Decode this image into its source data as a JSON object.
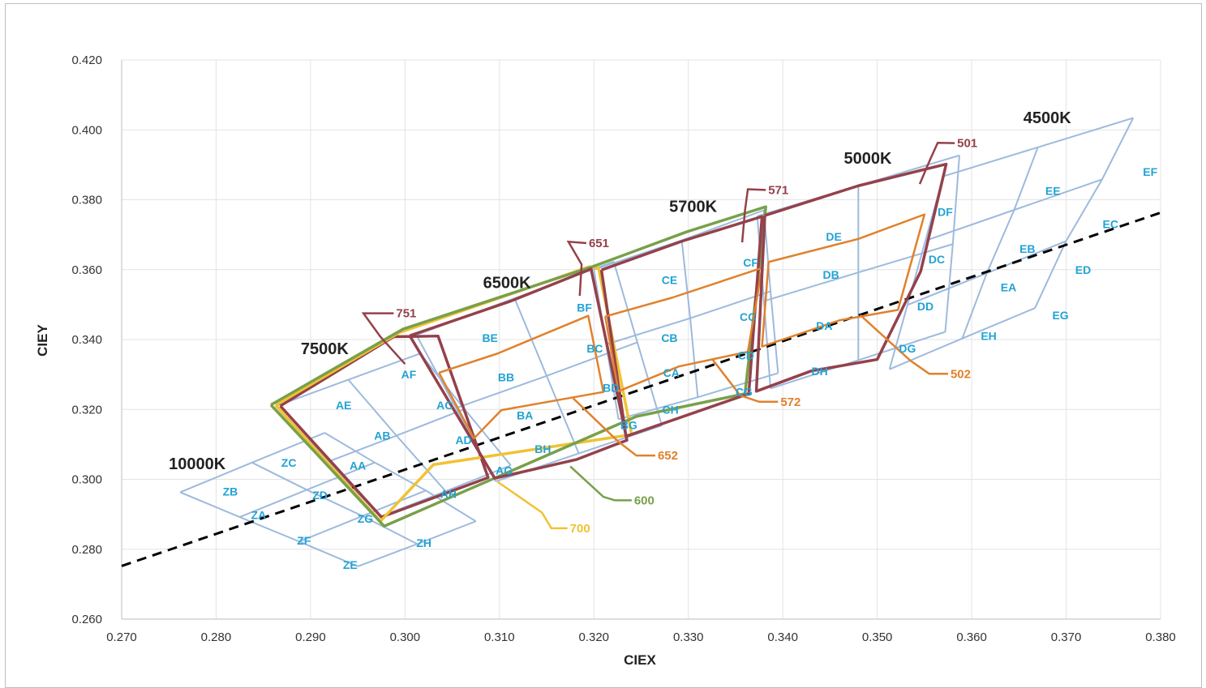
{
  "chart_data": {
    "type": "scatter",
    "subtype": "CIE 1931 chromaticity bin map",
    "xlabel": "CIEX",
    "ylabel": "CIEY",
    "xlim": [
      0.27,
      0.38
    ],
    "ylim": [
      0.26,
      0.42
    ],
    "x_ticks": [
      "0.270",
      "0.280",
      "0.290",
      "0.300",
      "0.310",
      "0.320",
      "0.330",
      "0.340",
      "0.350",
      "0.360",
      "0.370",
      "0.380"
    ],
    "y_ticks": [
      "0.260",
      "0.280",
      "0.300",
      "0.320",
      "0.340",
      "0.360",
      "0.380",
      "0.400",
      "0.420"
    ],
    "grid": true,
    "colors": {
      "bin_grid": "#9dbadd",
      "bin_label": "#22a3d4",
      "c751": "#94414b",
      "c700": "#f1c232",
      "c600": "#78a04a",
      "c651": "#94414b",
      "c652": "#e0812c",
      "c571": "#94414b",
      "c572": "#e0812c",
      "c501": "#94414b",
      "c502": "#e0812c",
      "blackbody": "#000000"
    },
    "blackbody_locus": [
      [
        0.27,
        0.2752
      ],
      [
        0.38,
        0.3763
      ]
    ],
    "cct_labels": [
      {
        "text": "10000K",
        "x": 0.278,
        "y": 0.3045
      },
      {
        "text": "7500K",
        "x": 0.2915,
        "y": 0.3375
      },
      {
        "text": "6500K",
        "x": 0.3108,
        "y": 0.3564
      },
      {
        "text": "5700K",
        "x": 0.3305,
        "y": 0.3782
      },
      {
        "text": "5000K",
        "x": 0.349,
        "y": 0.392
      },
      {
        "text": "4500K",
        "x": 0.368,
        "y": 0.4035
      }
    ],
    "bin_grids": [
      {
        "name": "10000K",
        "rows": [
          [
            [
              0.2762,
              0.2963
            ],
            [
              0.2838,
              0.3048
            ],
            [
              0.2915,
              0.3133
            ]
          ],
          [
            [
              0.2825,
              0.2892
            ],
            [
              0.2896,
              0.297
            ],
            [
              0.2968,
              0.3048
            ]
          ],
          [
            [
              0.2888,
              0.2822
            ],
            [
              0.2955,
              0.2895
            ],
            [
              0.3022,
              0.2968
            ]
          ],
          [
            [
              0.295,
              0.2751
            ],
            [
              0.3013,
              0.2815
            ],
            [
              0.3075,
              0.288
            ]
          ]
        ]
      },
      {
        "name": "7500K",
        "rows": [
          [
            [
              0.2864,
              0.321
            ],
            [
              0.294,
              0.3285
            ],
            [
              0.3016,
              0.336
            ]
          ],
          [
            [
              0.2919,
              0.3051
            ],
            [
              0.2991,
              0.3125
            ],
            [
              0.3063,
              0.3201
            ]
          ],
          [
            [
              0.2974,
              0.2893
            ],
            [
              0.3043,
              0.2966
            ],
            [
              0.3112,
              0.304
            ]
          ]
        ]
      },
      {
        "name": "6500K",
        "rows": [
          [
            [
              0.3012,
              0.3413
            ],
            [
              0.3116,
              0.3518
            ],
            [
              0.3221,
              0.3623
            ]
          ],
          [
            [
              0.3054,
              0.3204
            ],
            [
              0.315,
              0.3296
            ],
            [
              0.3246,
              0.3392
            ]
          ],
          [
            [
              0.3096,
              0.2994
            ],
            [
              0.3184,
              0.3074
            ],
            [
              0.3272,
              0.3154
            ]
          ]
        ]
      },
      {
        "name": "5700K",
        "rows": [
          [
            [
              0.32,
              0.36
            ],
            [
              0.3293,
              0.3684
            ],
            [
              0.338,
              0.377
            ]
          ],
          [
            [
              0.3213,
              0.3386
            ],
            [
              0.3302,
              0.3461
            ],
            [
              0.3387,
              0.3538
            ]
          ],
          [
            [
              0.3226,
              0.3172
            ],
            [
              0.331,
              0.3235
            ],
            [
              0.3395,
              0.3304
            ]
          ]
        ]
      },
      {
        "name": "5000K",
        "rows": [
          [
            [
              0.3373,
              0.3753
            ],
            [
              0.348,
              0.384
            ],
            [
              0.3587,
              0.3927
            ]
          ],
          [
            [
              0.338,
              0.351
            ],
            [
              0.348,
              0.3592
            ],
            [
              0.358,
              0.3673
            ]
          ],
          [
            [
              0.3387,
              0.326
            ],
            [
              0.348,
              0.3341
            ],
            [
              0.3572,
              0.3422
            ]
          ]
        ]
      },
      {
        "name": "4500K",
        "rows": [
          [
            [
              0.357,
              0.3867
            ],
            [
              0.367,
              0.395
            ],
            [
              0.3771,
              0.4034
            ]
          ],
          [
            [
              0.3551,
              0.3683
            ],
            [
              0.3645,
              0.3771
            ],
            [
              0.3738,
              0.3858
            ]
          ],
          [
            [
              0.3532,
              0.3499
            ],
            [
              0.3616,
              0.359
            ],
            [
              0.37,
              0.3682
            ]
          ],
          [
            [
              0.3513,
              0.3315
            ],
            [
              0.359,
              0.3403
            ],
            [
              0.3667,
              0.349
            ]
          ]
        ]
      }
    ],
    "bins": [
      {
        "label": "ZB",
        "x": 0.2815,
        "y": 0.2965
      },
      {
        "label": "ZC",
        "x": 0.2877,
        "y": 0.3048
      },
      {
        "label": "ZA",
        "x": 0.2845,
        "y": 0.2898
      },
      {
        "label": "ZD",
        "x": 0.291,
        "y": 0.2955
      },
      {
        "label": "ZF",
        "x": 0.2893,
        "y": 0.2825
      },
      {
        "label": "ZG",
        "x": 0.2958,
        "y": 0.2888
      },
      {
        "label": "ZE",
        "x": 0.2942,
        "y": 0.2755
      },
      {
        "label": "ZH",
        "x": 0.302,
        "y": 0.2818
      },
      {
        "label": "AE",
        "x": 0.2935,
        "y": 0.3212
      },
      {
        "label": "AF",
        "x": 0.3004,
        "y": 0.33
      },
      {
        "label": "AB",
        "x": 0.2976,
        "y": 0.3125
      },
      {
        "label": "AC",
        "x": 0.3042,
        "y": 0.3212
      },
      {
        "label": "AA",
        "x": 0.295,
        "y": 0.304
      },
      {
        "label": "AD",
        "x": 0.3062,
        "y": 0.3113
      },
      {
        "label": "AH",
        "x": 0.3046,
        "y": 0.2958
      },
      {
        "label": "AG",
        "x": 0.3105,
        "y": 0.3025
      },
      {
        "label": "BE",
        "x": 0.309,
        "y": 0.3405
      },
      {
        "label": "BF",
        "x": 0.319,
        "y": 0.3492
      },
      {
        "label": "BB",
        "x": 0.3107,
        "y": 0.3292
      },
      {
        "label": "BC",
        "x": 0.3201,
        "y": 0.3375
      },
      {
        "label": "BA",
        "x": 0.3127,
        "y": 0.3183
      },
      {
        "label": "BD",
        "x": 0.3218,
        "y": 0.3262
      },
      {
        "label": "BH",
        "x": 0.3146,
        "y": 0.3087
      },
      {
        "label": "BG",
        "x": 0.3237,
        "y": 0.3155
      },
      {
        "label": "CE",
        "x": 0.328,
        "y": 0.357
      },
      {
        "label": "CF",
        "x": 0.3366,
        "y": 0.362
      },
      {
        "label": "CB",
        "x": 0.328,
        "y": 0.3405
      },
      {
        "label": "CC",
        "x": 0.3363,
        "y": 0.3465
      },
      {
        "label": "CA",
        "x": 0.3282,
        "y": 0.3305
      },
      {
        "label": "CD",
        "x": 0.3361,
        "y": 0.3355
      },
      {
        "label": "CH",
        "x": 0.3281,
        "y": 0.32
      },
      {
        "label": "CG",
        "x": 0.3359,
        "y": 0.325
      },
      {
        "label": "DE",
        "x": 0.3454,
        "y": 0.3695
      },
      {
        "label": "DF",
        "x": 0.3572,
        "y": 0.3765
      },
      {
        "label": "DB",
        "x": 0.3451,
        "y": 0.3585
      },
      {
        "label": "DC",
        "x": 0.3563,
        "y": 0.363
      },
      {
        "label": "DA",
        "x": 0.3444,
        "y": 0.344
      },
      {
        "label": "DD",
        "x": 0.3551,
        "y": 0.3495
      },
      {
        "label": "DH",
        "x": 0.3439,
        "y": 0.331
      },
      {
        "label": "DG",
        "x": 0.3532,
        "y": 0.3375
      },
      {
        "label": "EE",
        "x": 0.3686,
        "y": 0.3825
      },
      {
        "label": "EF",
        "x": 0.3789,
        "y": 0.388
      },
      {
        "label": "EB",
        "x": 0.3659,
        "y": 0.366
      },
      {
        "label": "EC",
        "x": 0.3747,
        "y": 0.373
      },
      {
        "label": "EA",
        "x": 0.3639,
        "y": 0.355
      },
      {
        "label": "ED",
        "x": 0.3718,
        "y": 0.36
      },
      {
        "label": "EH",
        "x": 0.3618,
        "y": 0.341
      },
      {
        "label": "EG",
        "x": 0.3694,
        "y": 0.347
      }
    ],
    "series": [
      {
        "name": "751",
        "color": "#94414b",
        "width": 3.5,
        "points": [
          [
            0.2868,
            0.321
          ],
          [
            0.2988,
            0.3408
          ],
          [
            0.3035,
            0.341
          ],
          [
            0.3088,
            0.3005
          ],
          [
            0.2975,
            0.2892
          ],
          [
            0.2868,
            0.321
          ]
        ]
      },
      {
        "name": "700",
        "color": "#f1c232",
        "width": 3.5,
        "points": [
          [
            0.2863,
            0.3212
          ],
          [
            0.2994,
            0.342
          ],
          [
            0.3195,
            0.3608
          ],
          [
            0.3205,
            0.3604
          ],
          [
            0.324,
            0.3128
          ],
          [
            0.303,
            0.3042
          ],
          [
            0.2974,
            0.288
          ],
          [
            0.2863,
            0.3212
          ]
        ]
      },
      {
        "name": "600",
        "color": "#78a04a",
        "width": 3.5,
        "points": [
          [
            0.2858,
            0.3213
          ],
          [
            0.2998,
            0.343
          ],
          [
            0.32,
            0.361
          ],
          [
            0.3298,
            0.3708
          ],
          [
            0.3382,
            0.378
          ],
          [
            0.336,
            0.3245
          ],
          [
            0.3245,
            0.318
          ],
          [
            0.2978,
            0.2866
          ],
          [
            0.2858,
            0.3213
          ]
        ]
      },
      {
        "name": "651",
        "color": "#94414b",
        "width": 3.5,
        "points": [
          [
            0.3005,
            0.3411
          ],
          [
            0.3112,
            0.351
          ],
          [
            0.3197,
            0.3602
          ],
          [
            0.3235,
            0.3112
          ],
          [
            0.3182,
            0.3057
          ],
          [
            0.3095,
            0.3003
          ],
          [
            0.3005,
            0.3411
          ]
        ]
      },
      {
        "name": "652",
        "color": "#e0812c",
        "width": 2.5,
        "points": [
          [
            0.3036,
            0.3305
          ],
          [
            0.3098,
            0.336
          ],
          [
            0.3194,
            0.3468
          ],
          [
            0.321,
            0.325
          ],
          [
            0.3102,
            0.3198
          ],
          [
            0.3073,
            0.3117
          ],
          [
            0.3036,
            0.3305
          ]
        ]
      },
      {
        "name": "571",
        "color": "#94414b",
        "width": 3.5,
        "points": [
          [
            0.3208,
            0.3599
          ],
          [
            0.3294,
            0.3682
          ],
          [
            0.3378,
            0.3752
          ],
          [
            0.3364,
            0.3245
          ],
          [
            0.3234,
            0.3123
          ],
          [
            0.3208,
            0.3599
          ]
        ]
      },
      {
        "name": "572",
        "color": "#e0812c",
        "width": 2.5,
        "points": [
          [
            0.3212,
            0.3466
          ],
          [
            0.3283,
            0.352
          ],
          [
            0.3378,
            0.3605
          ],
          [
            0.3363,
            0.3365
          ],
          [
            0.329,
            0.3323
          ],
          [
            0.3226,
            0.3252
          ],
          [
            0.3212,
            0.3466
          ]
        ]
      },
      {
        "name": "501",
        "color": "#94414b",
        "width": 3.5,
        "points": [
          [
            0.3381,
            0.3755
          ],
          [
            0.348,
            0.384
          ],
          [
            0.3573,
            0.3902
          ],
          [
            0.3546,
            0.3595
          ],
          [
            0.35,
            0.3343
          ],
          [
            0.343,
            0.331
          ],
          [
            0.3372,
            0.3252
          ],
          [
            0.3381,
            0.3755
          ]
        ]
      },
      {
        "name": "502",
        "color": "#e0812c",
        "width": 2.5,
        "points": [
          [
            0.3385,
            0.3622
          ],
          [
            0.348,
            0.3688
          ],
          [
            0.355,
            0.3758
          ],
          [
            0.3522,
            0.3485
          ],
          [
            0.346,
            0.3455
          ],
          [
            0.3378,
            0.338
          ],
          [
            0.3385,
            0.3622
          ]
        ]
      }
    ],
    "callouts": [
      {
        "name": "751",
        "color": "#94414b",
        "text": "751",
        "points": [
          [
            0.3,
            0.333
          ],
          [
            0.2974,
            0.3408
          ],
          [
            0.2956,
            0.3475
          ],
          [
            0.2988,
            0.3475
          ]
        ]
      },
      {
        "name": "651",
        "color": "#94414b",
        "text": "651",
        "points": [
          [
            0.3185,
            0.3525
          ],
          [
            0.3187,
            0.3615
          ],
          [
            0.3173,
            0.368
          ],
          [
            0.3192,
            0.3676
          ]
        ]
      },
      {
        "name": "571",
        "color": "#94414b",
        "text": "571",
        "points": [
          [
            0.3357,
            0.3678
          ],
          [
            0.336,
            0.377
          ],
          [
            0.3363,
            0.383
          ],
          [
            0.3382,
            0.3828
          ]
        ]
      },
      {
        "name": "501",
        "color": "#94414b",
        "text": "501",
        "points": [
          [
            0.3545,
            0.3845
          ],
          [
            0.3556,
            0.3915
          ],
          [
            0.3564,
            0.3963
          ],
          [
            0.3582,
            0.3962
          ]
        ]
      },
      {
        "name": "700",
        "color": "#f1c232",
        "text": "700",
        "points": [
          [
            0.3098,
            0.2993
          ],
          [
            0.3145,
            0.2905
          ],
          [
            0.3155,
            0.286
          ],
          [
            0.3172,
            0.286
          ]
        ]
      },
      {
        "name": "600",
        "color": "#78a04a",
        "text": "600",
        "points": [
          [
            0.3175,
            0.3037
          ],
          [
            0.321,
            0.295
          ],
          [
            0.3222,
            0.294
          ],
          [
            0.324,
            0.294
          ]
        ]
      },
      {
        "name": "652",
        "color": "#e0812c",
        "text": "652",
        "points": [
          [
            0.3178,
            0.3232
          ],
          [
            0.3225,
            0.311
          ],
          [
            0.3245,
            0.3068
          ],
          [
            0.3265,
            0.3068
          ]
        ]
      },
      {
        "name": "572",
        "color": "#e0812c",
        "text": "572",
        "points": [
          [
            0.3325,
            0.3345
          ],
          [
            0.3355,
            0.324
          ],
          [
            0.3375,
            0.3222
          ],
          [
            0.3395,
            0.3222
          ]
        ]
      },
      {
        "name": "502",
        "color": "#e0812c",
        "text": "502",
        "points": [
          [
            0.3482,
            0.347
          ],
          [
            0.3535,
            0.334
          ],
          [
            0.3555,
            0.3302
          ],
          [
            0.3575,
            0.3302
          ]
        ]
      }
    ]
  }
}
